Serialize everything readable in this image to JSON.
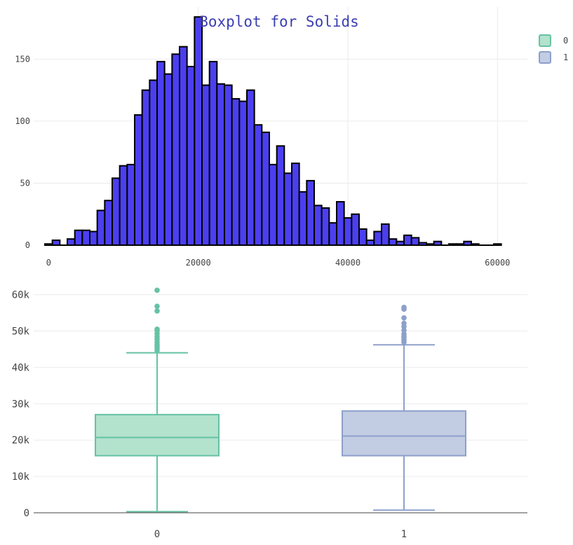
{
  "title": "Boxplot for Solids",
  "legend": [
    {
      "name": "0",
      "line": "#66c2a5",
      "fill": "#b3e2cd"
    },
    {
      "name": "1",
      "line": "#8da0cb",
      "fill": "#c2cce3"
    }
  ],
  "chart_data": [
    {
      "type": "bar",
      "title": "Boxplot for Solids",
      "xlabel": "",
      "ylabel": "",
      "xlim": [
        -2000,
        64000
      ],
      "ylim": [
        0,
        192
      ],
      "bin_width": 1000,
      "bin_start": -500,
      "x_ticks": [
        0,
        20000,
        40000,
        60000
      ],
      "x_tick_labels": [
        "0",
        "20000",
        "40000",
        "60000"
      ],
      "y_ticks": [
        0,
        50,
        100,
        150
      ],
      "y_tick_labels": [
        "0",
        "50",
        "100",
        "150"
      ],
      "values": [
        1,
        4,
        0,
        5,
        12,
        12,
        11,
        28,
        36,
        54,
        64,
        65,
        105,
        125,
        133,
        148,
        138,
        154,
        160,
        144,
        184,
        129,
        148,
        130,
        129,
        118,
        116,
        125,
        97,
        91,
        65,
        80,
        58,
        66,
        43,
        52,
        32,
        30,
        18,
        35,
        22,
        25,
        13,
        4,
        11,
        17,
        5,
        3,
        8,
        6,
        2,
        1,
        3,
        0,
        1,
        1,
        3,
        1,
        0,
        0,
        1
      ],
      "color": "#4b3ff0",
      "grid": true
    },
    {
      "type": "box",
      "ylim": [
        0,
        63000
      ],
      "y_ticks": [
        0,
        10000,
        20000,
        30000,
        40000,
        50000,
        60000
      ],
      "y_tick_labels": [
        "0",
        "10k",
        "20k",
        "30k",
        "40k",
        "50k",
        "60k"
      ],
      "categories": [
        "0",
        "1"
      ],
      "series": [
        {
          "name": "0",
          "min": 320,
          "q1": 15700,
          "median": 20700,
          "q3": 27000,
          "max": 44000,
          "outliers": [
            44600,
            45200,
            45700,
            46300,
            47000,
            47800,
            48500,
            49300,
            50100,
            50500,
            55500,
            56800,
            61200
          ],
          "line": "#66c2a5",
          "fill": "#b3e2cd"
        },
        {
          "name": "1",
          "min": 730,
          "q1": 15700,
          "median": 21100,
          "q3": 28000,
          "max": 46200,
          "outliers": [
            46900,
            47500,
            48100,
            48600,
            49200,
            50200,
            51200,
            52100,
            53600,
            56000,
            56500
          ],
          "line": "#8da0cb",
          "fill": "#c2cce3"
        }
      ],
      "grid": true
    }
  ]
}
